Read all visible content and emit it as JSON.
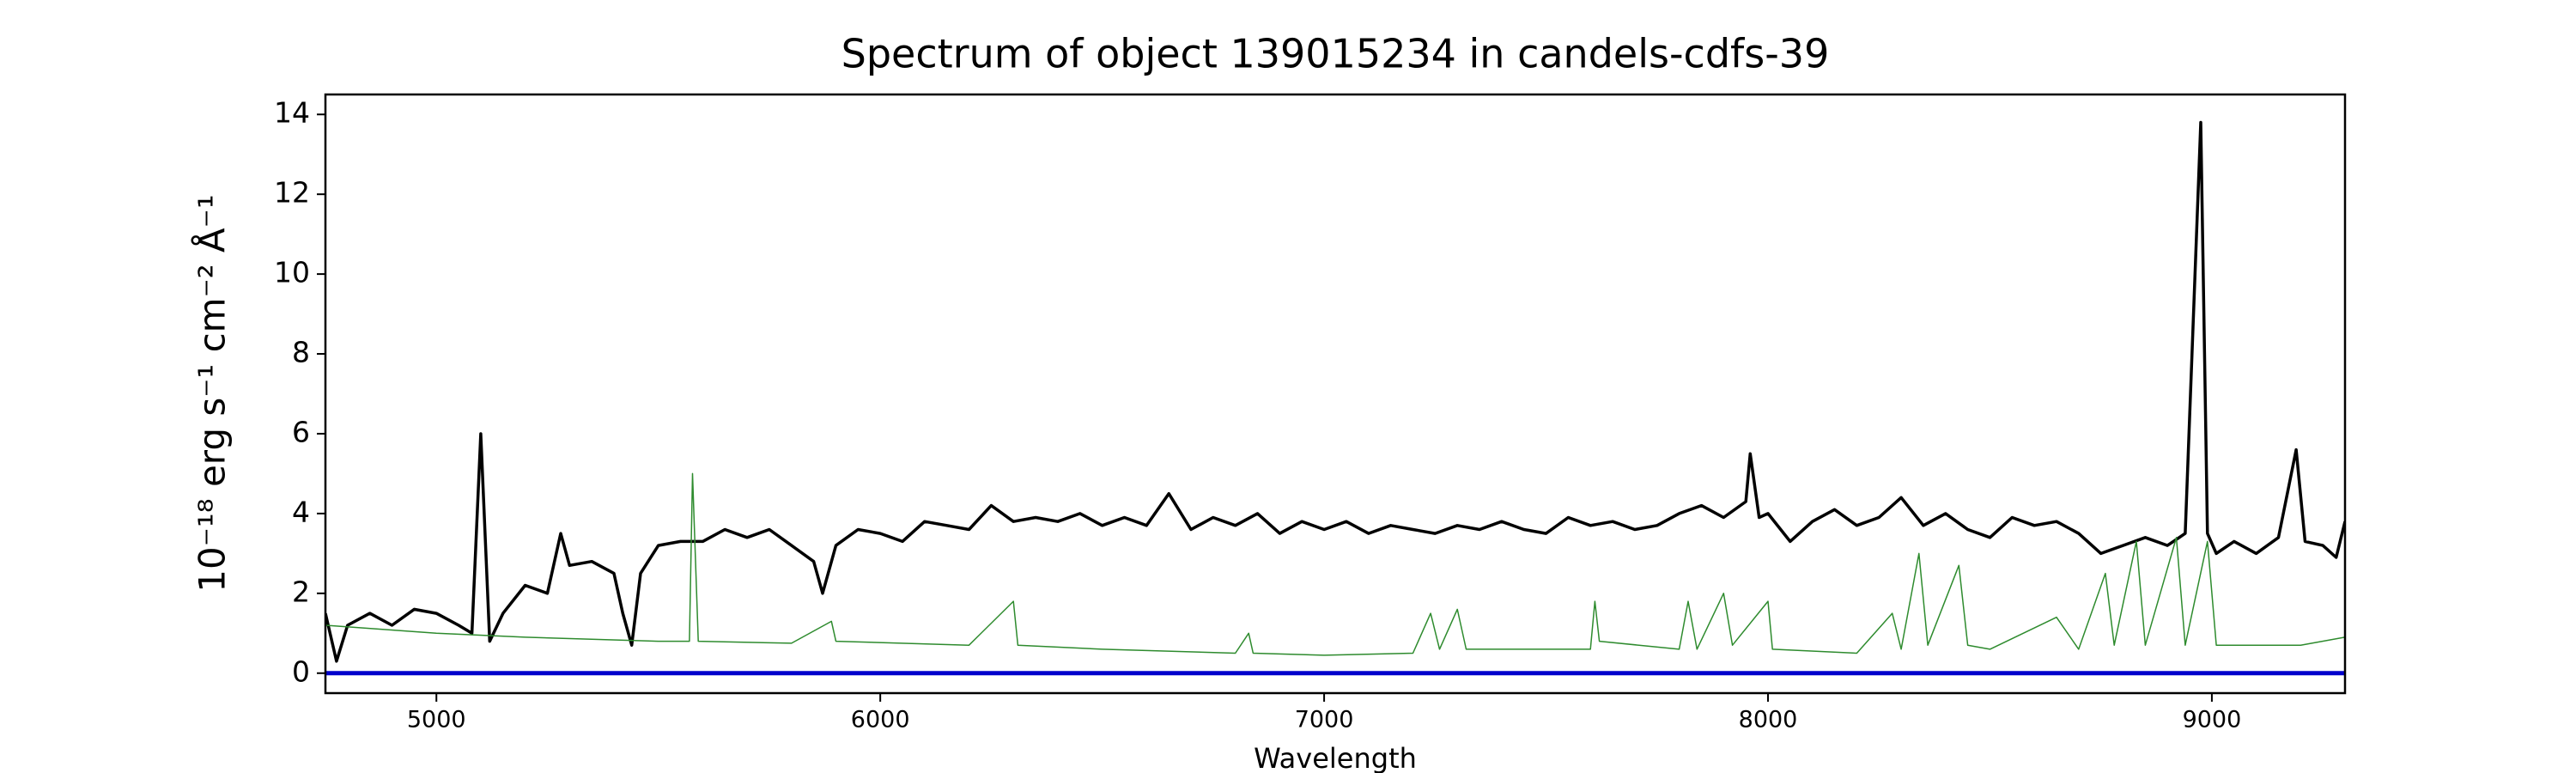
{
  "chart_data": {
    "type": "line",
    "title": "Spectrum of object 139015234 in candels-cdfs-39",
    "x_label": "Wavelength",
    "y_label": "10⁻¹⁸ erg s⁻¹ cm⁻² Å⁻¹",
    "xlim": [
      4750,
      9300
    ],
    "ylim": [
      -0.5,
      14.5
    ],
    "xticks": [
      5000,
      6000,
      7000,
      8000,
      9000
    ],
    "yticks": [
      0,
      2,
      4,
      6,
      8,
      10,
      12,
      14
    ],
    "grid": false,
    "series": [
      {
        "color": "#000000",
        "width": 3.5,
        "x": [
          4750,
          4775,
          4800,
          4850,
          4900,
          4950,
          5000,
          5050,
          5080,
          5100,
          5120,
          5150,
          5200,
          5250,
          5280,
          5300,
          5350,
          5400,
          5420,
          5440,
          5460,
          5500,
          5550,
          5600,
          5650,
          5700,
          5750,
          5800,
          5850,
          5870,
          5900,
          5950,
          6000,
          6050,
          6100,
          6150,
          6200,
          6250,
          6300,
          6350,
          6400,
          6450,
          6500,
          6550,
          6600,
          6650,
          6700,
          6750,
          6800,
          6850,
          6900,
          6950,
          7000,
          7050,
          7100,
          7150,
          7200,
          7250,
          7300,
          7350,
          7400,
          7450,
          7500,
          7550,
          7600,
          7650,
          7700,
          7750,
          7800,
          7850,
          7900,
          7950,
          7960,
          7980,
          8000,
          8050,
          8100,
          8150,
          8200,
          8250,
          8300,
          8350,
          8400,
          8450,
          8500,
          8550,
          8600,
          8650,
          8700,
          8750,
          8800,
          8850,
          8900,
          8940,
          8975,
          8990,
          9010,
          9050,
          9100,
          9150,
          9190,
          9210,
          9250,
          9280,
          9300
        ],
        "values": [
          1.5,
          0.3,
          1.2,
          1.5,
          1.2,
          1.6,
          1.5,
          1.2,
          1.0,
          6.0,
          0.8,
          1.5,
          2.2,
          2.0,
          3.5,
          2.7,
          2.8,
          2.5,
          1.5,
          0.7,
          2.5,
          3.2,
          3.3,
          3.3,
          3.6,
          3.4,
          3.6,
          3.2,
          2.8,
          2.0,
          3.2,
          3.6,
          3.5,
          3.3,
          3.8,
          3.7,
          3.6,
          4.2,
          3.8,
          3.9,
          3.8,
          4.0,
          3.7,
          3.9,
          3.7,
          4.5,
          3.6,
          3.9,
          3.7,
          4.0,
          3.5,
          3.8,
          3.6,
          3.8,
          3.5,
          3.7,
          3.6,
          3.5,
          3.7,
          3.6,
          3.8,
          3.6,
          3.5,
          3.9,
          3.7,
          3.8,
          3.6,
          3.7,
          4.0,
          4.2,
          3.9,
          4.3,
          5.5,
          3.9,
          4.0,
          3.3,
          3.8,
          4.1,
          3.7,
          3.9,
          4.4,
          3.7,
          4.0,
          3.6,
          3.4,
          3.9,
          3.7,
          3.8,
          3.5,
          3.0,
          3.2,
          3.4,
          3.2,
          3.5,
          13.8,
          3.5,
          3.0,
          3.3,
          3.0,
          3.4,
          5.6,
          3.3,
          3.2,
          2.9,
          3.8
        ]
      },
      {
        "color": "#2e8b2e",
        "width": 1.5,
        "x": [
          4750,
          5000,
          5200,
          5500,
          5570,
          5577,
          5590,
          5800,
          5890,
          5900,
          6200,
          6300,
          6310,
          6500,
          6800,
          6830,
          6840,
          7000,
          7200,
          7240,
          7260,
          7300,
          7320,
          7600,
          7610,
          7620,
          7800,
          7820,
          7840,
          7900,
          7920,
          8000,
          8010,
          8200,
          8280,
          8300,
          8340,
          8360,
          8430,
          8450,
          8500,
          8650,
          8700,
          8760,
          8780,
          8830,
          8850,
          8920,
          8940,
          8990,
          9010,
          9200,
          9300
        ],
        "values": [
          1.2,
          1.0,
          0.9,
          0.8,
          0.8,
          5.0,
          0.8,
          0.75,
          1.3,
          0.8,
          0.7,
          1.8,
          0.7,
          0.6,
          0.5,
          1.0,
          0.5,
          0.45,
          0.5,
          1.5,
          0.6,
          1.6,
          0.6,
          0.6,
          1.8,
          0.8,
          0.6,
          1.8,
          0.6,
          2.0,
          0.7,
          1.8,
          0.6,
          0.5,
          1.5,
          0.6,
          3.0,
          0.7,
          2.7,
          0.7,
          0.6,
          1.4,
          0.6,
          2.5,
          0.7,
          3.3,
          0.7,
          3.4,
          0.7,
          3.3,
          0.7,
          0.7,
          0.9
        ]
      },
      {
        "color": "#0000cc",
        "width": 5,
        "x": [
          4750,
          9300
        ],
        "values": [
          0,
          0
        ]
      }
    ]
  }
}
